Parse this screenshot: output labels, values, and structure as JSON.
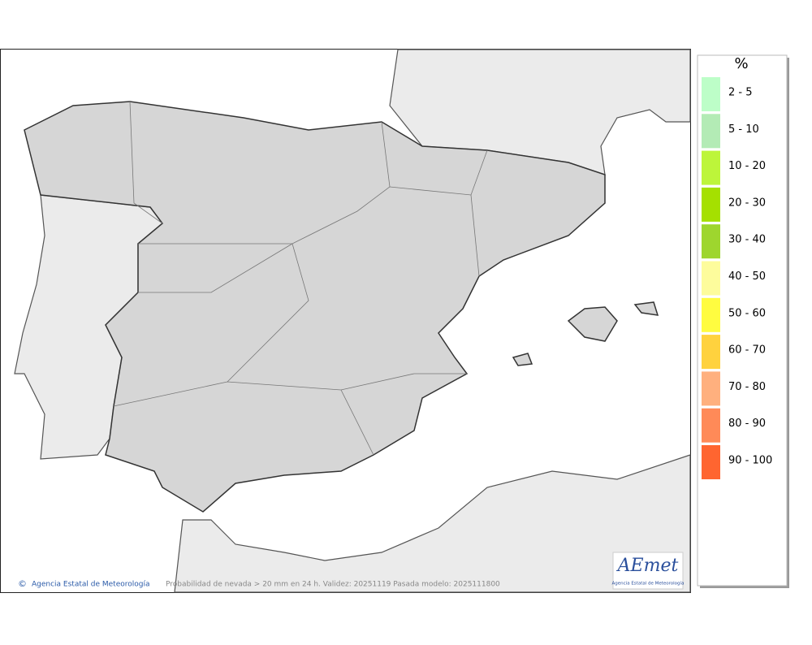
{
  "map": {
    "credit": "Agencia Estatal de Meteorología",
    "caption": "Probabilidad de nevada > 20 mm en 24 h. Validez: 20251119 Pasada modelo: 2025111800",
    "logo": {
      "name": "AEmet",
      "subtitle": "Agencia Estatal de Meteorología"
    }
  },
  "legend": {
    "title": "%",
    "items": [
      {
        "label": "2 - 5",
        "color": "#bdfec8"
      },
      {
        "label": "5 - 10",
        "color": "#b3ebb5"
      },
      {
        "label": "10 - 20",
        "color": "#bdf53a"
      },
      {
        "label": "20 - 30",
        "color": "#a5e000"
      },
      {
        "label": "30 - 40",
        "color": "#9ed62e"
      },
      {
        "label": "40 - 50",
        "color": "#fdfc9c"
      },
      {
        "label": "50 - 60",
        "color": "#fffc40"
      },
      {
        "label": "60 - 70",
        "color": "#ffd23e"
      },
      {
        "label": "70 - 80",
        "color": "#ffb07e"
      },
      {
        "label": "80 - 90",
        "color": "#ff8a58"
      },
      {
        "label": "90 - 100",
        "color": "#ff6530"
      }
    ]
  }
}
